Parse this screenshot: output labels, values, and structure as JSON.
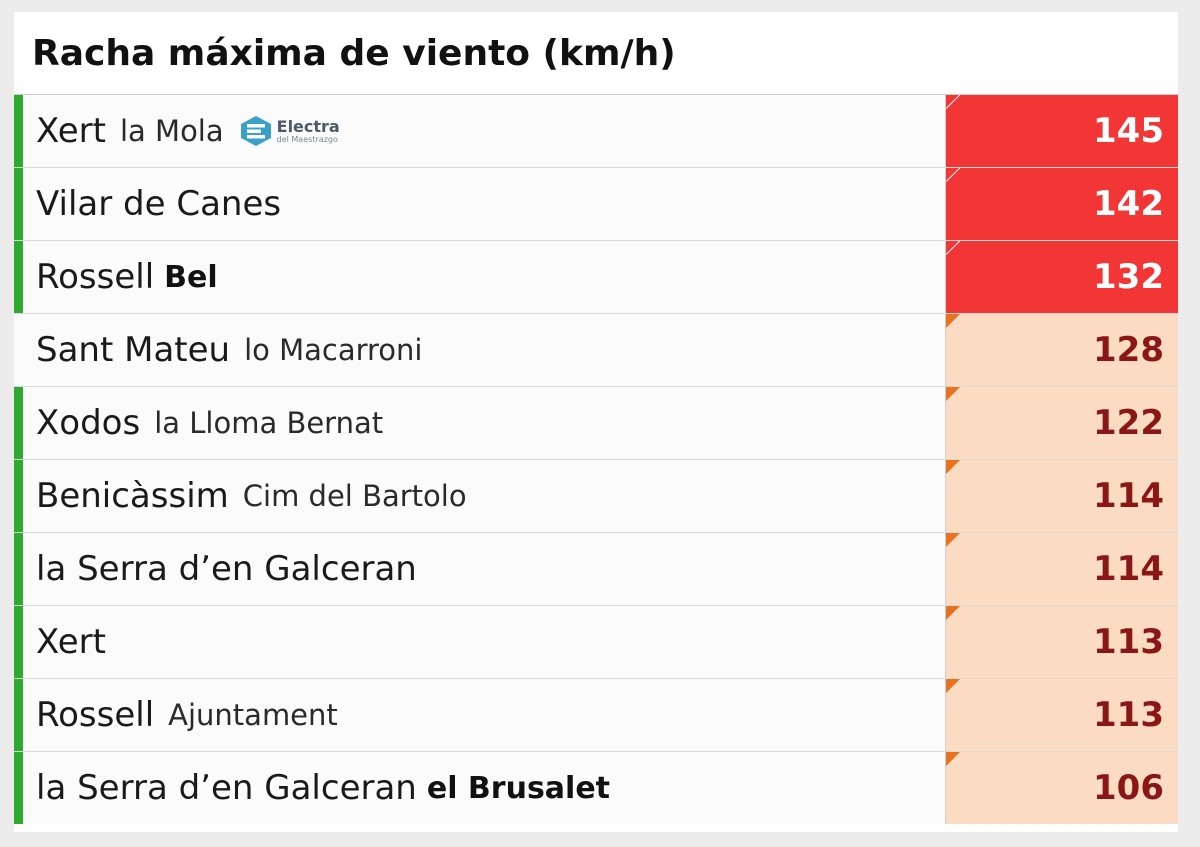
{
  "title": "Racha máxima de viento (km/h)",
  "colors": {
    "high": "#f23535",
    "mid": "#fbdcc2",
    "mid_text": "#8a1616",
    "marker_bar": "#2eaa2e",
    "flag": "#e8731e"
  },
  "rows": [
    {
      "station": "Xert",
      "sub": "la Mola",
      "sub_bold": false,
      "logo": {
        "main": "Electra",
        "sub": "del Maestrazgo",
        "icon": "electra-logo-icon"
      },
      "value": "145",
      "level": "high",
      "marked": true
    },
    {
      "station": "Vilar de Canes",
      "sub": "",
      "sub_bold": false,
      "value": "142",
      "level": "high",
      "marked": true
    },
    {
      "station": "Rossell",
      "sub": "Bel",
      "sub_bold": true,
      "value": "132",
      "level": "high",
      "marked": true
    },
    {
      "station": "Sant Mateu",
      "sub": "lo Macarroni",
      "sub_bold": false,
      "value": "128",
      "level": "mid",
      "marked": false
    },
    {
      "station": "Xodos",
      "sub": "la Lloma Bernat",
      "sub_bold": false,
      "value": "122",
      "level": "mid",
      "marked": true
    },
    {
      "station": "Benicàssim",
      "sub": "Cim del Bartolo",
      "sub_bold": false,
      "value": "114",
      "level": "mid",
      "marked": true
    },
    {
      "station": "la Serra d’en Galceran",
      "sub": "",
      "sub_bold": false,
      "value": "114",
      "level": "mid",
      "marked": true
    },
    {
      "station": "Xert",
      "sub": "",
      "sub_bold": false,
      "value": "113",
      "level": "mid",
      "marked": true
    },
    {
      "station": "Rossell",
      "sub": "Ajuntament",
      "sub_bold": false,
      "value": "113",
      "level": "mid",
      "marked": true
    },
    {
      "station": "la Serra d’en Galceran",
      "sub": "el Brusalet",
      "sub_bold": true,
      "value": "106",
      "level": "mid",
      "marked": true
    }
  ]
}
